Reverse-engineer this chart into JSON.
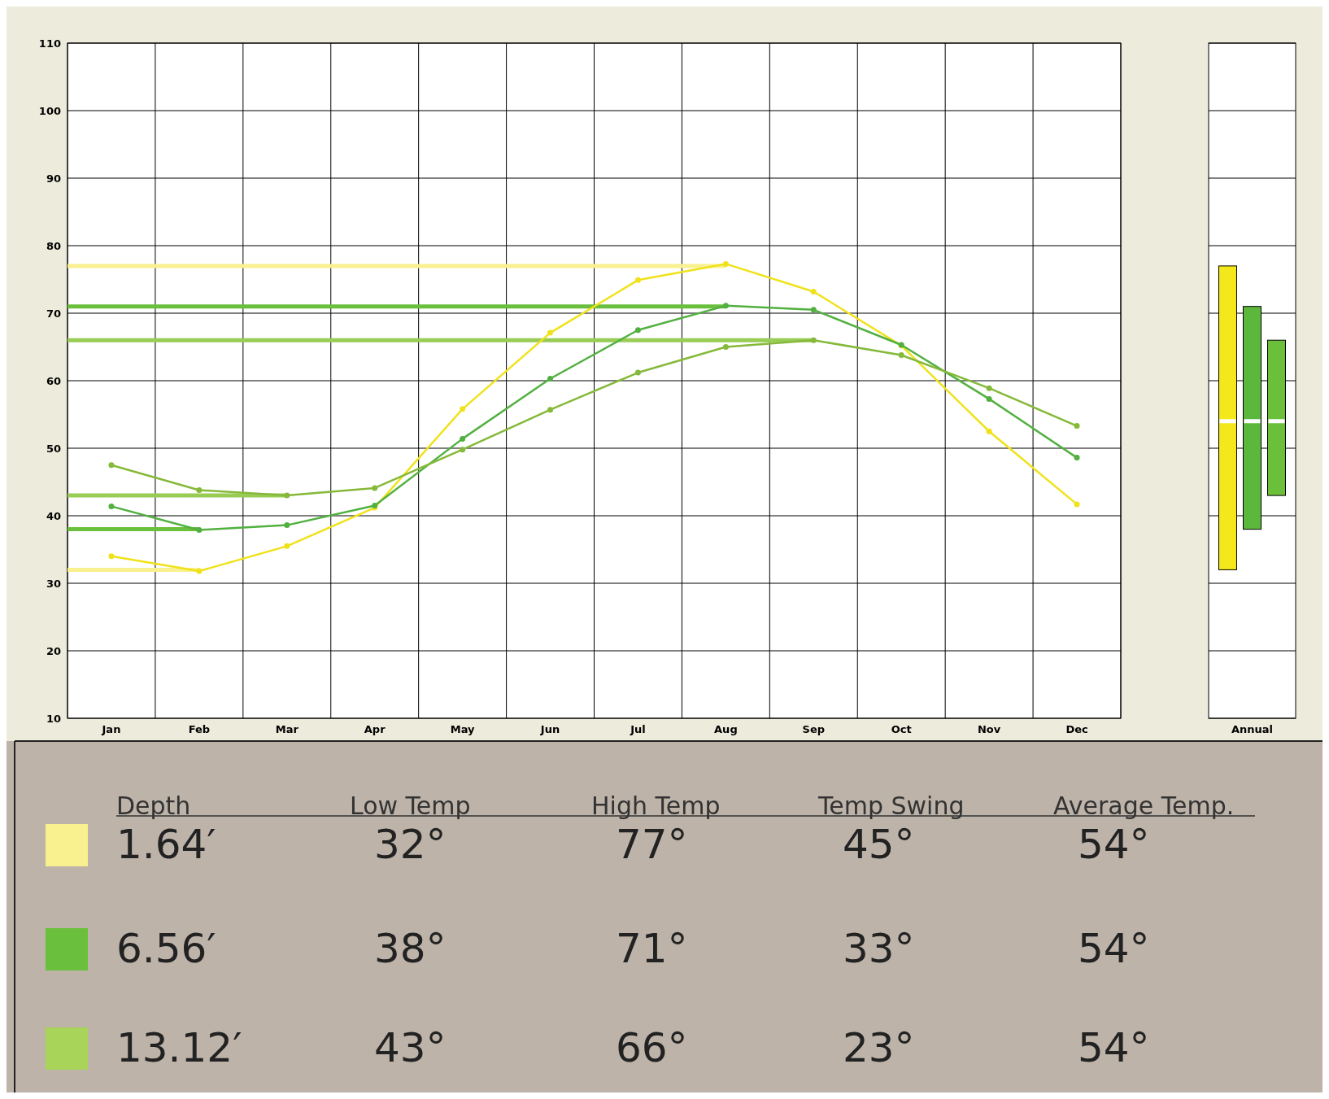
{
  "chart_data": [
    {
      "type": "line",
      "categories": [
        "Jan",
        "Feb",
        "Mar",
        "Apr",
        "May",
        "Jun",
        "Jul",
        "Aug",
        "Sep",
        "Oct",
        "Nov",
        "Dec"
      ],
      "ylim": [
        10,
        110
      ],
      "yticks": [
        10,
        20,
        30,
        40,
        50,
        60,
        70,
        80,
        90,
        100,
        110
      ],
      "grid": true,
      "marker": "circle",
      "line_style": "solid",
      "series": [
        {
          "color": "#f0e21a",
          "values": [
            34.0,
            31.8,
            35.5,
            41.2,
            55.8,
            67.1,
            74.9,
            77.3,
            73.2,
            65.2,
            52.5,
            41.7
          ]
        },
        {
          "color": "#52b040",
          "values": [
            41.4,
            37.9,
            38.6,
            41.5,
            51.4,
            60.3,
            67.5,
            71.1,
            70.5,
            65.3,
            57.3,
            48.6
          ]
        },
        {
          "color": "#86b93a",
          "values": [
            47.5,
            43.8,
            43.0,
            44.1,
            49.8,
            55.7,
            61.2,
            65.0,
            66.0,
            63.8,
            58.9,
            53.3
          ]
        }
      ],
      "ref_lines": [
        {
          "axis": "y",
          "value": 77,
          "color": "#f9f08f"
        },
        {
          "axis": "y",
          "value": 32,
          "color": "#f9f08f"
        },
        {
          "axis": "y",
          "value": 71,
          "color": "#6abf3c"
        },
        {
          "axis": "y",
          "value": 38,
          "color": "#6abf3c"
        },
        {
          "axis": "y",
          "value": 66,
          "color": "#99cc55"
        },
        {
          "axis": "y",
          "value": 43,
          "color": "#99cc55"
        }
      ]
    },
    {
      "type": "bar",
      "categories": [
        "Annual"
      ],
      "ylim": [
        10,
        110
      ],
      "yticks": [
        10,
        20,
        30,
        40,
        50,
        60,
        70,
        80,
        90,
        100,
        110
      ],
      "grid": true,
      "tick_labels": "x",
      "series": [
        {
          "color": "#f5e81a",
          "base": [
            32
          ],
          "values": [
            45
          ]
        },
        {
          "color": "#5cb83c",
          "base": [
            38
          ],
          "values": [
            33
          ]
        },
        {
          "color": "#6cbf3a",
          "base": [
            43
          ],
          "values": [
            23
          ]
        }
      ],
      "ref_lines": [
        {
          "axis": "y",
          "value": 54,
          "color": "#ffffff"
        }
      ]
    },
    {
      "type": "other",
      "legend_title": "Depth",
      "categories": [
        "Low Temp",
        "High Temp",
        "Temp Swing",
        "Average Temp."
      ],
      "series": [
        {
          "name": "1.64′",
          "color": "#f9f08f",
          "values": [
            32,
            77,
            45,
            54
          ],
          "value_labels": [
            "32°",
            "77°",
            "45°",
            "54°"
          ]
        },
        {
          "name": "6.56′",
          "color": "#6abf3c",
          "values": [
            38,
            71,
            33,
            54
          ],
          "value_labels": [
            "38°",
            "71°",
            "33°",
            "54°"
          ]
        },
        {
          "name": "13.12′",
          "color": "#a8d45a",
          "values": [
            43,
            66,
            23,
            54
          ],
          "value_labels": [
            "43°",
            "66°",
            "23°",
            "54°"
          ]
        }
      ]
    }
  ]
}
